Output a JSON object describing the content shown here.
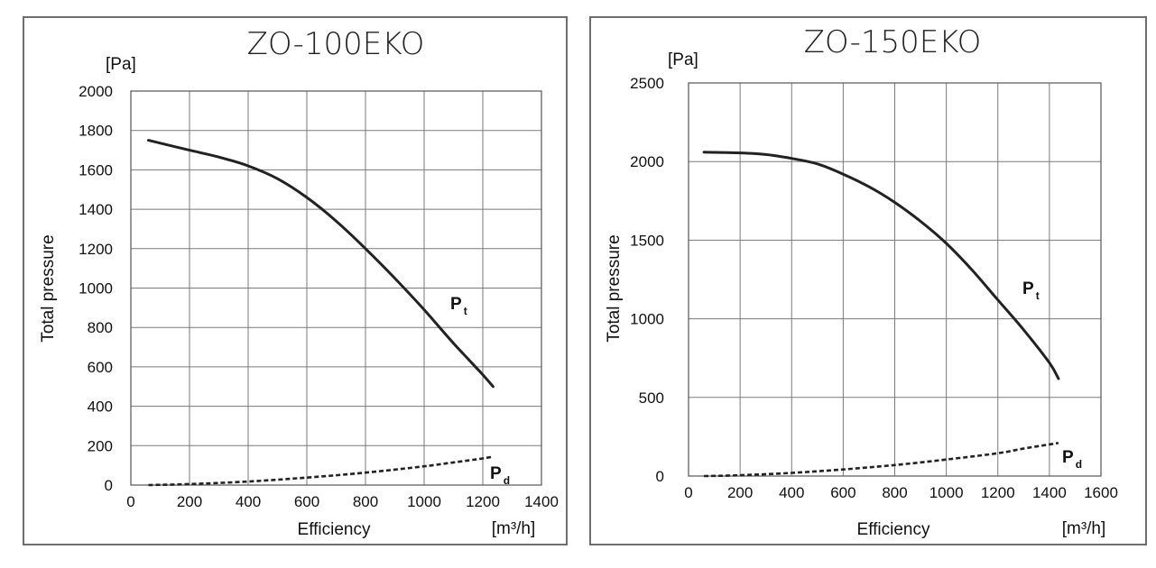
{
  "chart_data": [
    {
      "type": "line",
      "title": "ZO-100EKO",
      "unit_label": "[Pa]",
      "ylabel": "Total pressure",
      "xlabel": "Efficiency",
      "xunit": "[m³/h]",
      "xlim": [
        0,
        1400
      ],
      "ylim": [
        0,
        2000
      ],
      "xticks": [
        0,
        200,
        400,
        600,
        800,
        1000,
        1200,
        1400
      ],
      "yticks": [
        0,
        200,
        400,
        600,
        800,
        1000,
        1200,
        1400,
        1600,
        1800,
        2000
      ],
      "grid": true,
      "series": [
        {
          "name": "P",
          "subscript": "t",
          "style": "solid",
          "x": [
            60,
            200,
            300,
            400,
            500,
            600,
            700,
            800,
            900,
            1000,
            1100,
            1200,
            1235
          ],
          "y": [
            1750,
            1700,
            1665,
            1620,
            1555,
            1460,
            1340,
            1200,
            1050,
            890,
            720,
            560,
            500
          ]
        },
        {
          "name": "P",
          "subscript": "d",
          "style": "dashed",
          "x": [
            60,
            200,
            400,
            600,
            800,
            1000,
            1100,
            1200,
            1235
          ],
          "y": [
            0,
            5,
            18,
            38,
            63,
            95,
            115,
            135,
            145
          ]
        }
      ]
    },
    {
      "type": "line",
      "title": "ZO-150EKO",
      "unit_label": "[Pa]",
      "ylabel": "Total pressure",
      "xlabel": "Efficiency",
      "xunit": "[m³/h]",
      "xlim": [
        0,
        1600
      ],
      "ylim": [
        0,
        2500
      ],
      "xticks": [
        0,
        200,
        400,
        600,
        800,
        1000,
        1200,
        1400,
        1600
      ],
      "yticks": [
        0,
        500,
        1000,
        1500,
        2000,
        2500
      ],
      "grid": true,
      "series": [
        {
          "name": "P",
          "subscript": "t",
          "style": "solid",
          "x": [
            60,
            200,
            300,
            400,
            500,
            600,
            700,
            800,
            900,
            1000,
            1100,
            1200,
            1300,
            1400,
            1435
          ],
          "y": [
            2060,
            2055,
            2045,
            2020,
            1985,
            1920,
            1840,
            1740,
            1620,
            1480,
            1310,
            1120,
            930,
            720,
            620
          ]
        },
        {
          "name": "P",
          "subscript": "d",
          "style": "dashed",
          "x": [
            60,
            200,
            400,
            600,
            800,
            1000,
            1200,
            1300,
            1435
          ],
          "y": [
            0,
            5,
            20,
            42,
            70,
            105,
            145,
            175,
            210
          ]
        }
      ]
    }
  ]
}
